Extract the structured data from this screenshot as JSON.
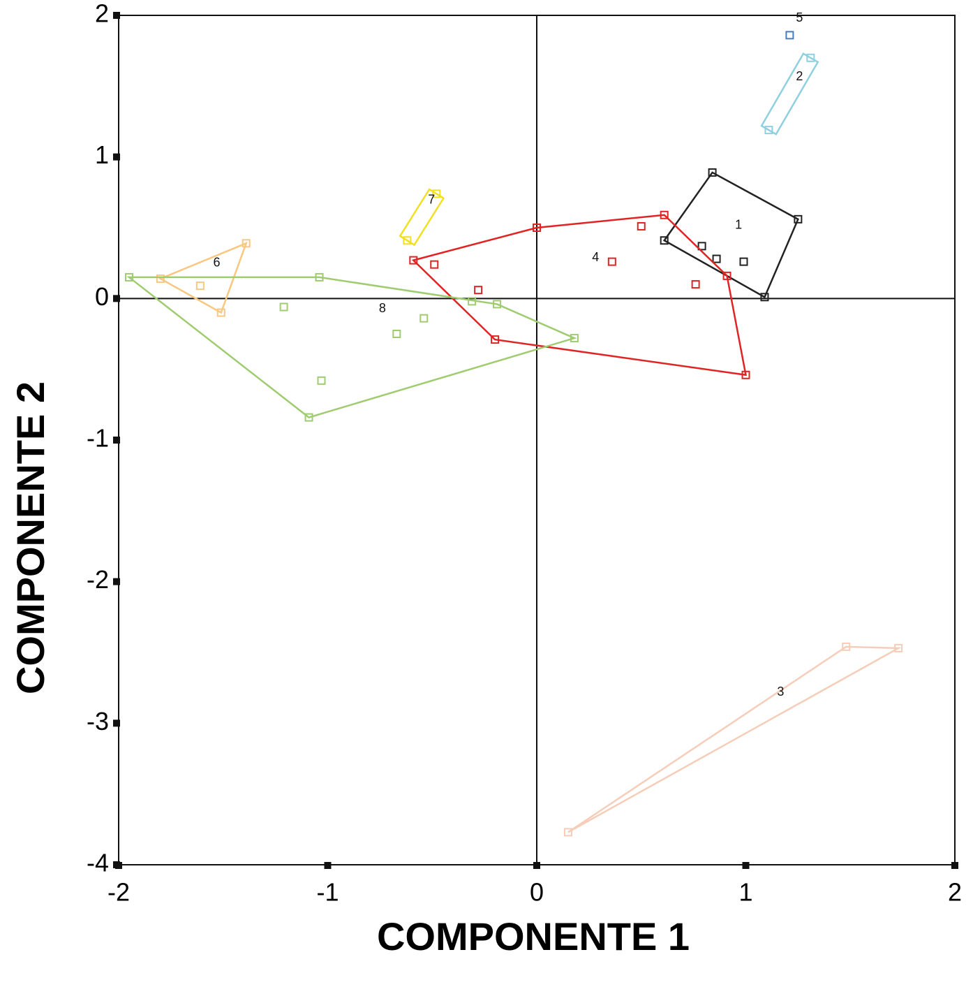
{
  "chart_data": {
    "type": "scatter",
    "x_label": "COMPONENTE 1",
    "y_label": "COMPONENTE 2",
    "xlim": [
      -2,
      2
    ],
    "ylim": [
      -4,
      2
    ],
    "xticks": [
      -2,
      -1,
      0,
      1,
      2
    ],
    "yticks": [
      -4,
      -3,
      -2,
      -1,
      0,
      1,
      2
    ],
    "series": [
      {
        "name": "1",
        "color": "#222222",
        "x": [
          0.84,
          1.25,
          0.61,
          0.79,
          0.86,
          0.99,
          1.09
        ],
        "values": [
          0.89,
          0.56,
          0.41,
          0.37,
          0.28,
          0.26,
          0.01
        ]
      },
      {
        "name": "2",
        "color": "#8fd0e0",
        "x": [
          1.31,
          1.11
        ],
        "values": [
          1.7,
          1.19
        ]
      },
      {
        "name": "3",
        "color": "#f5cdb8",
        "x": [
          1.48,
          1.73,
          0.15
        ],
        "values": [
          -2.46,
          -2.47,
          -3.77
        ]
      },
      {
        "name": "4",
        "color": "#e02424",
        "x": [
          0.0,
          0.5,
          0.61,
          0.36,
          0.76,
          0.91,
          1.0,
          -0.28,
          -0.2,
          -0.49,
          -0.59
        ],
        "values": [
          0.5,
          0.51,
          0.59,
          0.26,
          0.1,
          0.16,
          -0.54,
          0.06,
          -0.29,
          0.24,
          0.27
        ]
      },
      {
        "name": "5",
        "color": "#4a7cc0",
        "x": [
          1.21
        ],
        "values": [
          1.86
        ]
      },
      {
        "name": "6",
        "color": "#f8c880",
        "x": [
          -1.39,
          -1.8,
          -1.61,
          -1.51
        ],
        "values": [
          0.39,
          0.14,
          0.09,
          -0.1
        ]
      },
      {
        "name": "7",
        "color": "#f0e020",
        "x": [
          -0.48,
          -0.62
        ],
        "values": [
          0.74,
          0.41
        ]
      },
      {
        "name": "8",
        "color": "#a0cc70",
        "x": [
          -1.95,
          -1.04,
          -1.21,
          -0.67,
          -0.54,
          -0.31,
          -0.19,
          0.18,
          -1.03,
          -1.09
        ],
        "values": [
          0.15,
          0.15,
          -0.06,
          -0.25,
          -0.14,
          -0.02,
          -0.04,
          -0.28,
          -0.58,
          -0.84
        ]
      }
    ]
  }
}
